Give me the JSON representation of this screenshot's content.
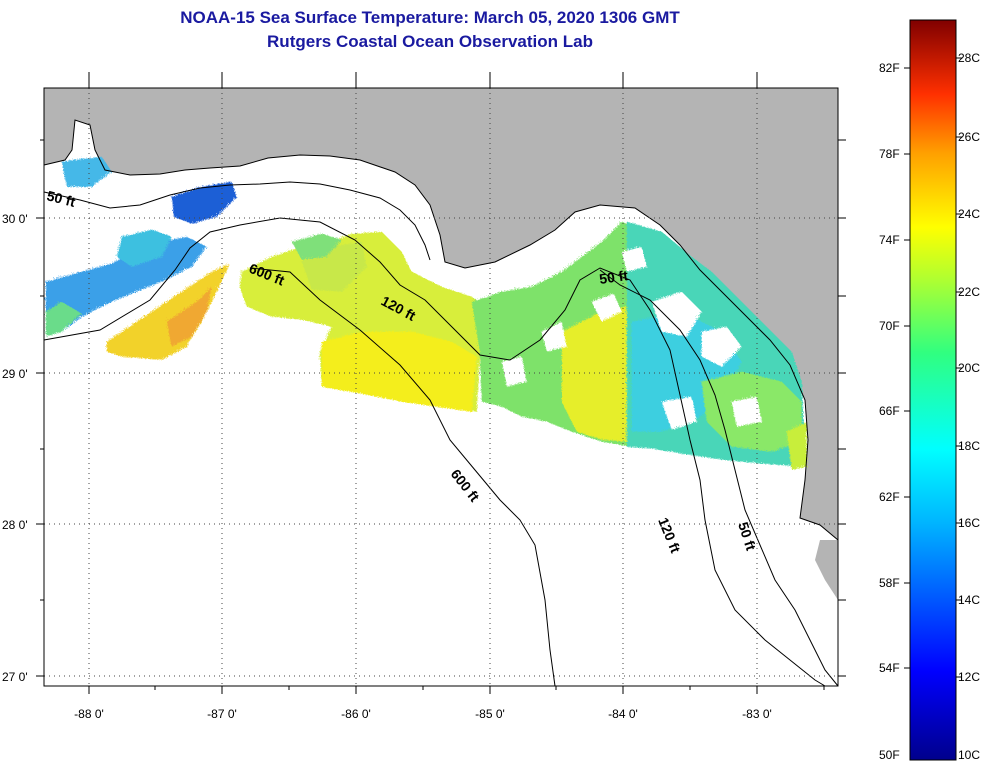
{
  "title": "NOAA-15 Sea Surface Temperature:  March 05, 2020 1306 GMT",
  "subtitle": "Rutgers Coastal Ocean Observation Lab",
  "lon_labels": [
    "-88 0'",
    "-87 0'",
    "-86 0'",
    "-85 0'",
    "-84 0'",
    "-83 0'"
  ],
  "lat_labels": [
    "30 0'",
    "29 0'",
    "28 0'",
    "27 0'"
  ],
  "contour_labels": [
    "50 ft",
    "600 ft",
    "120 ft",
    "50 ft",
    "600 ft",
    "120 ft",
    "50 ft"
  ],
  "colorbar": {
    "fahrenheit": [
      "82F",
      "78F",
      "74F",
      "70F",
      "66F",
      "62F",
      "58F",
      "54F",
      "50F"
    ],
    "celsius": [
      "28C",
      "26C",
      "24C",
      "22C",
      "20C",
      "18C",
      "16C",
      "14C",
      "12C",
      "10C"
    ]
  },
  "colors": {
    "land": "#b4b4b4",
    "title": "#1a1aa0"
  }
}
